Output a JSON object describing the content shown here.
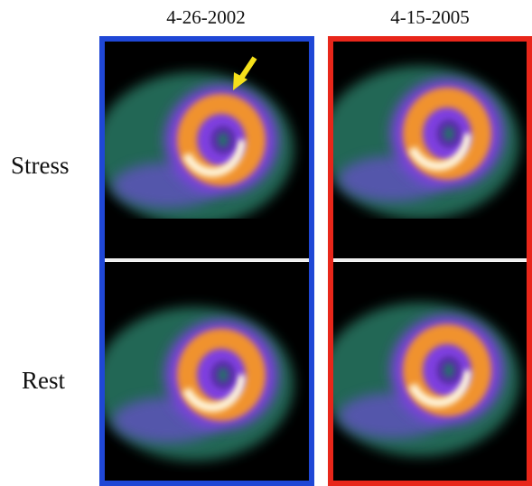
{
  "columns": [
    {
      "date": "4-26-2002"
    },
    {
      "date": "4-15-2005"
    }
  ],
  "rows": [
    {
      "label": "Stress"
    },
    {
      "label": "Rest"
    }
  ]
}
